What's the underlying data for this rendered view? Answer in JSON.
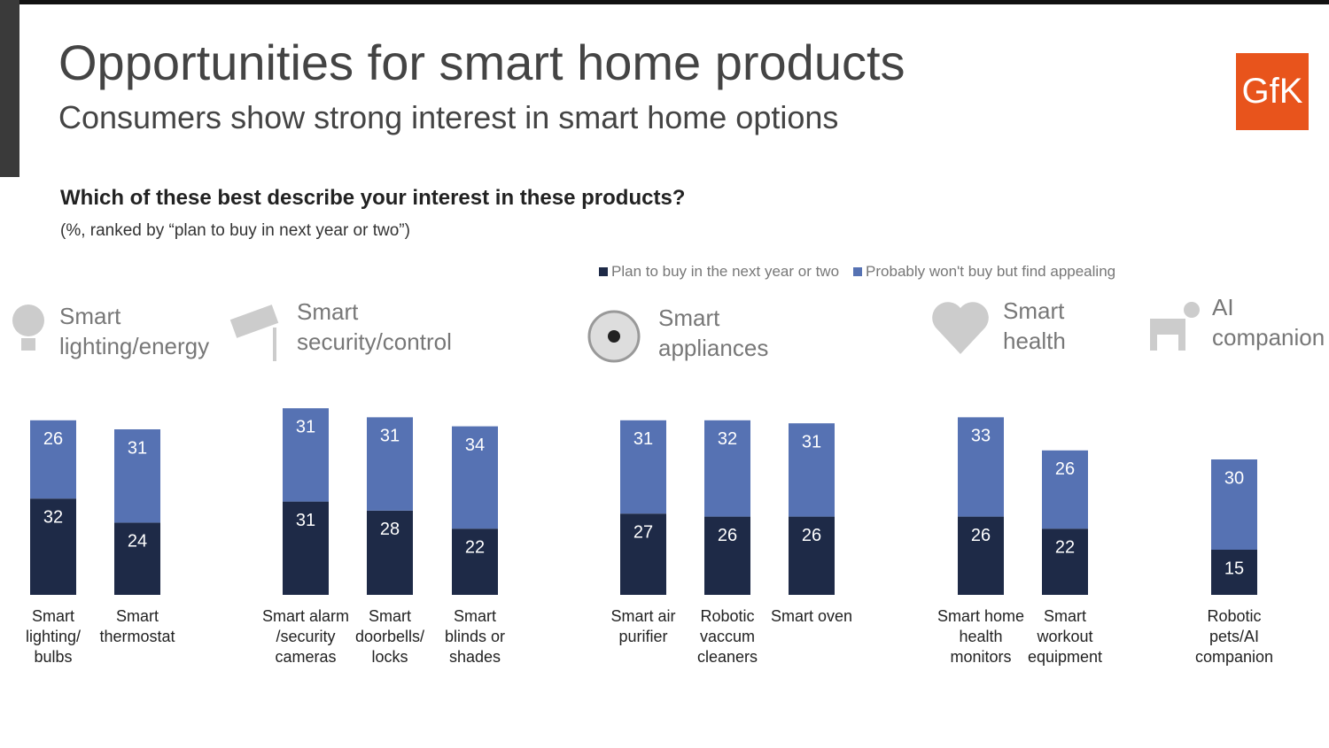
{
  "chart_data": {
    "type": "bar",
    "stacked": true,
    "title": "Opportunities for smart home products",
    "subtitle": "Consumers show strong interest in smart home options",
    "question": "Which of these best describe your interest in these products?",
    "note": "(%, ranked by “plan to buy in next year or two”)",
    "logo": "GfK",
    "legend": "top-right",
    "groups": [
      "Smart\nlighting/energy",
      "Smart\nsecurity/control",
      "Smart\nappliances",
      "Smart\nhealth",
      "AI\ncompanion"
    ],
    "categories": [
      [
        "Smart\nlighting/\nbulbs",
        "Smart\nthermostat"
      ],
      [
        "Smart alarm\n/security\ncameras",
        "Smart\ndoorbells/\nlocks",
        "Smart\nblinds or\nshades"
      ],
      [
        "Smart air\npurifier",
        "Robotic\nvaccum\ncleaners",
        "Smart oven"
      ],
      [
        "Smart home\nhealth\nmonitors",
        "Smart\nworkout\nequipment"
      ],
      [
        "Robotic\npets/AI\ncompanion"
      ]
    ],
    "series": [
      {
        "name": "Plan to buy in the next year or two",
        "color": "#1e2a47",
        "values": [
          [
            32,
            24
          ],
          [
            31,
            28,
            22
          ],
          [
            27,
            26,
            26
          ],
          [
            26,
            22
          ],
          [
            15
          ]
        ]
      },
      {
        "name": "Probably won't buy but find appealing",
        "color": "#5672b3",
        "values": [
          [
            26,
            31
          ],
          [
            31,
            31,
            34
          ],
          [
            31,
            32,
            31
          ],
          [
            33,
            26
          ],
          [
            30
          ]
        ]
      }
    ]
  }
}
